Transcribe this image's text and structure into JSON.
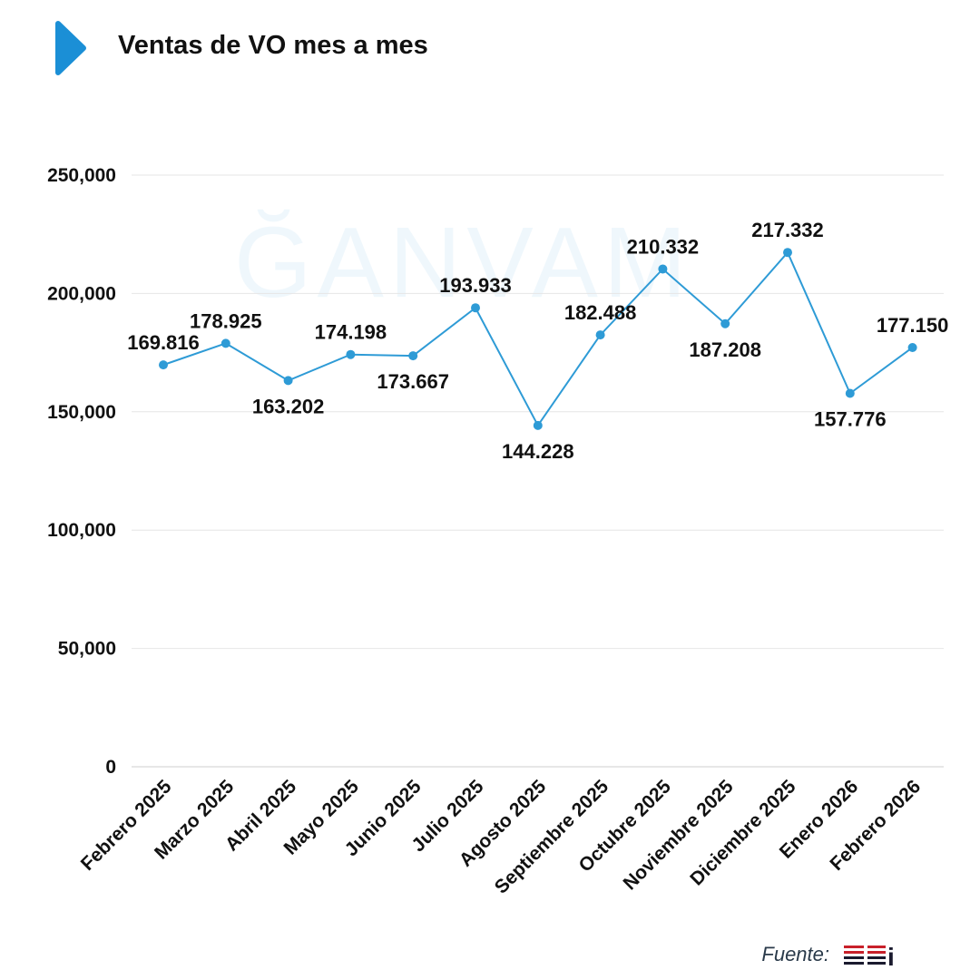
{
  "header": {
    "title": "Ventas de VO mes a mes",
    "arrow_color": "#1b8fd6"
  },
  "watermark": {
    "text": "ĞANVAM"
  },
  "footer": {
    "source_label": "Fuente:",
    "logo_text": "MSI",
    "logo_colors": [
      "#c8202a",
      "#1a1a2e"
    ]
  },
  "colors": {
    "line": "#2e9bd6",
    "grid": "#e6e6e6",
    "text": "#111111"
  },
  "chart_data": {
    "type": "line",
    "title": "Ventas de VO mes a mes",
    "xlabel": "",
    "ylabel": "",
    "ylim": [
      0,
      250000
    ],
    "yticks": [
      0,
      50000,
      100000,
      150000,
      200000,
      250000
    ],
    "ytick_labels": [
      "0",
      "50,000",
      "100,000",
      "150,000",
      "200,000",
      "250,000"
    ],
    "grid": true,
    "categories": [
      "Febrero 2025",
      "Marzo 2025",
      "Abril 2025",
      "Mayo 2025",
      "Junio 2025",
      "Julio 2025",
      "Agosto 2025",
      "Septiembre 2025",
      "Octubre 2025",
      "Noviembre 2025",
      "Diciembre 2025",
      "Enero 2026",
      "Febrero 2026"
    ],
    "values": [
      169816,
      178925,
      163202,
      174198,
      173667,
      193933,
      144228,
      182488,
      210332,
      187208,
      217332,
      157776,
      177150
    ],
    "data_labels": [
      "169.816",
      "178.925",
      "163.202",
      "174.198",
      "173.667",
      "193.933",
      "144.228",
      "182.488",
      "210.332",
      "187.208",
      "217.332",
      "157.776",
      "177.150"
    ],
    "label_positions": [
      "above",
      "above",
      "below",
      "above",
      "below",
      "above",
      "below",
      "above",
      "above",
      "below",
      "above",
      "below",
      "above"
    ]
  }
}
